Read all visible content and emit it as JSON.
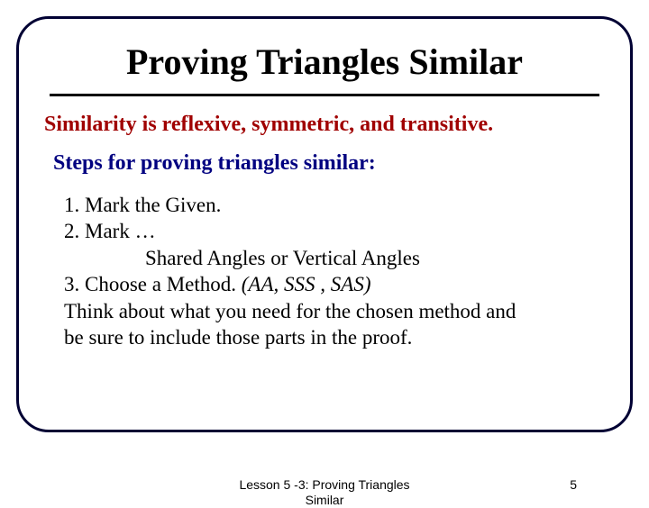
{
  "colors": {
    "frame_border": "#000033",
    "title_text": "#000000",
    "rule": "#000000",
    "statement_text": "#a00000",
    "subheading_text": "#000080",
    "body_text": "#000000",
    "background": "#ffffff"
  },
  "typography": {
    "title_fontsize": 40,
    "title_weight": "bold",
    "statement_fontsize": 24,
    "statement_weight": "bold",
    "subheading_fontsize": 24,
    "subheading_weight": "bold",
    "body_fontsize": 23,
    "footer_fontsize": 14,
    "serif_family": "Times New Roman",
    "sans_family": "Arial"
  },
  "layout": {
    "frame_radius": 36,
    "frame_border_width": 3,
    "slide_width": 720,
    "slide_height": 540
  },
  "title": "Proving Triangles Similar",
  "statement": "Similarity is reflexive, symmetric, and transitive.",
  "subheading": "Steps for proving triangles similar:",
  "steps": {
    "line1": "1. Mark the Given.",
    "line2": "2. Mark …",
    "line3": "Shared Angles or Vertical Angles",
    "line4_prefix": "3. Choose a Method.   ",
    "line4_methods": "(AA, SSS , SAS)",
    "line5": "Think about what you need for the chosen method and",
    "line6": "be sure to include those parts in the proof."
  },
  "footer": {
    "center": "Lesson 5 -3: Proving Triangles\nSimilar",
    "page_number": "5"
  }
}
